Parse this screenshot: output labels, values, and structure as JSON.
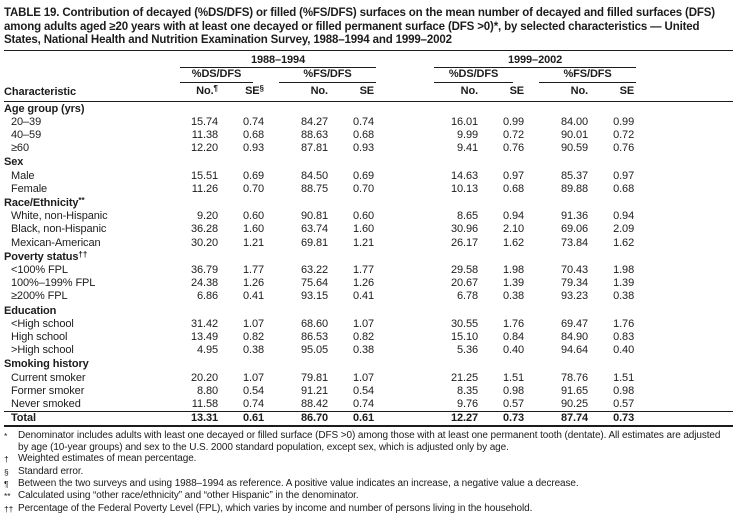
{
  "title": "TABLE 19. Contribution of decayed (%DS/DFS) or filled (%FS/DFS) surfaces on the mean number of decayed and filled surfaces (DFS) among adults aged ≥20 years with at least one decayed or filled permanent surface (DFS >0)*, by selected characteristics — United States, National Health and Nutrition Examination Survey, 1988–1994 and 1999–2002",
  "table": {
    "characteristic_label": "Characteristic",
    "year_groups": [
      {
        "label": "1988–1994"
      },
      {
        "label": "1999–2002"
      }
    ],
    "measure_groups": [
      {
        "label": "%DS/DFS"
      },
      {
        "label": "%FS/DFS"
      },
      {
        "label": "%DS/DFS"
      },
      {
        "label": "%FS/DFS"
      }
    ],
    "columns": [
      {
        "base": "No.",
        "sup": "¶"
      },
      {
        "base": "SE",
        "sup": "§"
      },
      {
        "base": "No.",
        "sup": ""
      },
      {
        "base": "SE",
        "sup": ""
      },
      {
        "base": "No.",
        "sup": ""
      },
      {
        "base": "SE",
        "sup": ""
      },
      {
        "base": "No.",
        "sup": ""
      },
      {
        "base": "SE",
        "sup": ""
      }
    ],
    "sections": [
      {
        "label": "Age group (yrs)",
        "sup": "",
        "rows": [
          {
            "label": "20–39",
            "values": [
              "15.74",
              "0.74",
              "84.27",
              "0.74",
              "16.01",
              "0.99",
              "84.00",
              "0.99"
            ]
          },
          {
            "label": "40–59",
            "values": [
              "11.38",
              "0.68",
              "88.63",
              "0.68",
              "9.99",
              "0.72",
              "90.01",
              "0.72"
            ]
          },
          {
            "label": "≥60",
            "values": [
              "12.20",
              "0.93",
              "87.81",
              "0.93",
              "9.41",
              "0.76",
              "90.59",
              "0.76"
            ]
          }
        ]
      },
      {
        "label": "Sex",
        "sup": "",
        "rows": [
          {
            "label": "Male",
            "values": [
              "15.51",
              "0.69",
              "84.50",
              "0.69",
              "14.63",
              "0.97",
              "85.37",
              "0.97"
            ]
          },
          {
            "label": "Female",
            "values": [
              "11.26",
              "0.70",
              "88.75",
              "0.70",
              "10.13",
              "0.68",
              "89.88",
              "0.68"
            ]
          }
        ]
      },
      {
        "label": "Race/Ethnicity",
        "sup": "**",
        "rows": [
          {
            "label": "White, non-Hispanic",
            "values": [
              "9.20",
              "0.60",
              "90.81",
              "0.60",
              "8.65",
              "0.94",
              "91.36",
              "0.94"
            ]
          },
          {
            "label": "Black, non-Hispanic",
            "values": [
              "36.28",
              "1.60",
              "63.74",
              "1.60",
              "30.96",
              "2.10",
              "69.06",
              "2.09"
            ]
          },
          {
            "label": "Mexican-American",
            "values": [
              "30.20",
              "1.21",
              "69.81",
              "1.21",
              "26.17",
              "1.62",
              "73.84",
              "1.62"
            ]
          }
        ]
      },
      {
        "label": "Poverty status",
        "sup": "††",
        "rows": [
          {
            "label": "<100% FPL",
            "values": [
              "36.79",
              "1.77",
              "63.22",
              "1.77",
              "29.58",
              "1.98",
              "70.43",
              "1.98"
            ]
          },
          {
            "label": "100%–199% FPL",
            "values": [
              "24.38",
              "1.26",
              "75.64",
              "1.26",
              "20.67",
              "1.39",
              "79.34",
              "1.39"
            ]
          },
          {
            "label": "≥200% FPL",
            "values": [
              "6.86",
              "0.41",
              "93.15",
              "0.41",
              "6.78",
              "0.38",
              "93.23",
              "0.38"
            ]
          }
        ]
      },
      {
        "label": "Education",
        "sup": "",
        "rows": [
          {
            "label": "<High school",
            "values": [
              "31.42",
              "1.07",
              "68.60",
              "1.07",
              "30.55",
              "1.76",
              "69.47",
              "1.76"
            ]
          },
          {
            "label": "High school",
            "values": [
              "13.49",
              "0.82",
              "86.53",
              "0.82",
              "15.10",
              "0.84",
              "84.90",
              "0.83"
            ]
          },
          {
            "label": ">High school",
            "values": [
              "4.95",
              "0.38",
              "95.05",
              "0.38",
              "5.36",
              "0.40",
              "94.64",
              "0.40"
            ]
          }
        ]
      },
      {
        "label": "Smoking history",
        "sup": "",
        "rows": [
          {
            "label": "Current smoker",
            "values": [
              "20.20",
              "1.07",
              "79.81",
              "1.07",
              "21.25",
              "1.51",
              "78.76",
              "1.51"
            ]
          },
          {
            "label": "Former smoker",
            "values": [
              "8.80",
              "0.54",
              "91.21",
              "0.54",
              "8.35",
              "0.98",
              "91.65",
              "0.98"
            ]
          },
          {
            "label": "Never smoked",
            "values": [
              "11.58",
              "0.74",
              "88.42",
              "0.74",
              "9.76",
              "0.57",
              "90.25",
              "0.57"
            ]
          }
        ]
      }
    ],
    "total_row": {
      "label": "Total",
      "values": [
        "13.31",
        "0.61",
        "86.70",
        "0.61",
        "12.27",
        "0.73",
        "87.74",
        "0.73"
      ]
    }
  },
  "footnotes": [
    {
      "marker": "*",
      "text": "Denominator includes adults with least one decayed or filled surface (DFS >0) among those with at least one permanent tooth (dentate).  All estimates are adjusted by age (10-year groups) and sex to the U.S. 2000 standard population, except sex, which is adjusted only by age."
    },
    {
      "marker": "†",
      "text": "Weighted estimates of mean percentage."
    },
    {
      "marker": "§",
      "text": "Standard error."
    },
    {
      "marker": "¶",
      "text": "Between the two surveys and using 1988–1994 as reference. A positive value indicates an increase, a negative value a decrease."
    },
    {
      "marker": "**",
      "text": "Calculated using “other race/ethnicity” and “other Hispanic” in the denominator."
    },
    {
      "marker": "††",
      "text": "Percentage of the Federal Poverty Level (FPL), which varies by income and number of persons living in the household."
    }
  ],
  "colors": {
    "text": "#1c1c1c",
    "rule": "#1c1c1c",
    "background": "#ffffff"
  }
}
